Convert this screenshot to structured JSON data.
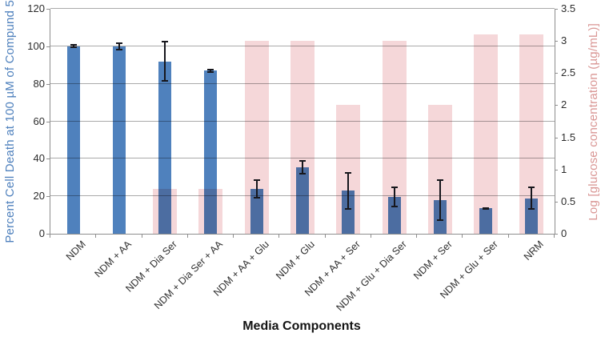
{
  "chart_data": {
    "type": "bar",
    "title": "",
    "xlabel": "Media Components",
    "grid": true,
    "legend_position": "none",
    "categories": [
      "NDM",
      "NDM + AA",
      "NDM + Dia Ser",
      "NDM + Dia Ser + AA",
      "NDM + AA + Glu",
      "NDM + Glu",
      "NDM + AA + Ser",
      "NDM + Glu + Dia Ser",
      "NDM + Ser",
      "NDM + Glu + Ser",
      "NRM"
    ],
    "series": [
      {
        "name": "Percent Cell Death at 100 µM of Compund 5",
        "yaxis": "left",
        "bar_color": "#4f81bd",
        "values": [
          100,
          100,
          92,
          87,
          24,
          35.5,
          23,
          19.5,
          18,
          13.5,
          19
        ],
        "error_bars": [
          1,
          2,
          11,
          1,
          5,
          4,
          10,
          5.5,
          11,
          0.5,
          6
        ]
      },
      {
        "name": "Log [glucose concentration (µg/mL)]",
        "yaxis": "right",
        "bar_color": "#f5d7d9",
        "values": [
          null,
          null,
          0.7,
          0.7,
          3.0,
          3.0,
          2.0,
          3.0,
          2.0,
          3.1,
          3.1
        ]
      }
    ],
    "left_axis": {
      "label": "Percent Cell Death at 100 µM of Compund 5",
      "color": "#4f81bd",
      "min": 0,
      "max": 120,
      "step": 20,
      "ticks": [
        "0",
        "20",
        "40",
        "60",
        "80",
        "100",
        "120"
      ]
    },
    "right_axis": {
      "label": "Log [glucose concentration (µg/mL)]",
      "color": "#d99694",
      "min": 0,
      "max": 3.5,
      "step": 0.5,
      "ticks": [
        "0",
        "0.5",
        "1",
        "1.5",
        "2",
        "2.5",
        "3",
        "3.5"
      ]
    },
    "error_bar_color": "#17171d",
    "gridline_color": "#aaaaaa"
  }
}
